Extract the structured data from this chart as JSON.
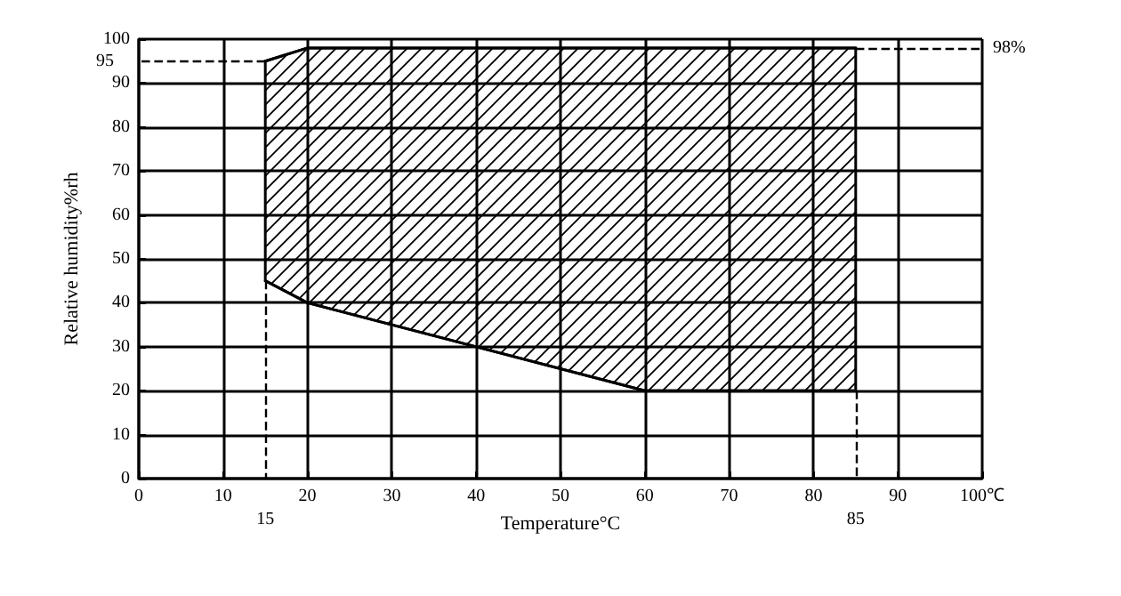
{
  "chart_data": {
    "type": "area",
    "xlabel": "Temperature°C",
    "ylabel": "Relative humidity%rh",
    "xlim": [
      0,
      100
    ],
    "xticks": [
      0,
      10,
      20,
      30,
      40,
      50,
      60,
      70,
      80,
      90,
      {
        "value": 100,
        "label": "100℃"
      }
    ],
    "ylim": [
      0,
      100
    ],
    "yticks": [
      0,
      10,
      20,
      30,
      40,
      50,
      60,
      70,
      80,
      90,
      100
    ],
    "grid": true,
    "series": [
      {
        "color": "#000000",
        "x": [
          15,
          20,
          60,
          85
        ],
        "values": [
          95,
          98,
          98,
          98
        ]
      },
      {
        "type": "line",
        "color": "#000000",
        "x": [
          15,
          20,
          60,
          85
        ],
        "values": [
          45,
          40,
          20,
          20
        ]
      }
    ],
    "ref_lines": [
      {
        "axis": "y",
        "value": 95,
        "label": "95",
        "line_style": "dashed"
      },
      {
        "axis": "y",
        "value": 98,
        "label": "98%",
        "line_style": "dashed"
      },
      {
        "axis": "x",
        "value": 15,
        "label": "15",
        "line_style": "dashed"
      },
      {
        "axis": "x",
        "value": 85,
        "label": "85",
        "line_style": "dashed"
      }
    ]
  }
}
